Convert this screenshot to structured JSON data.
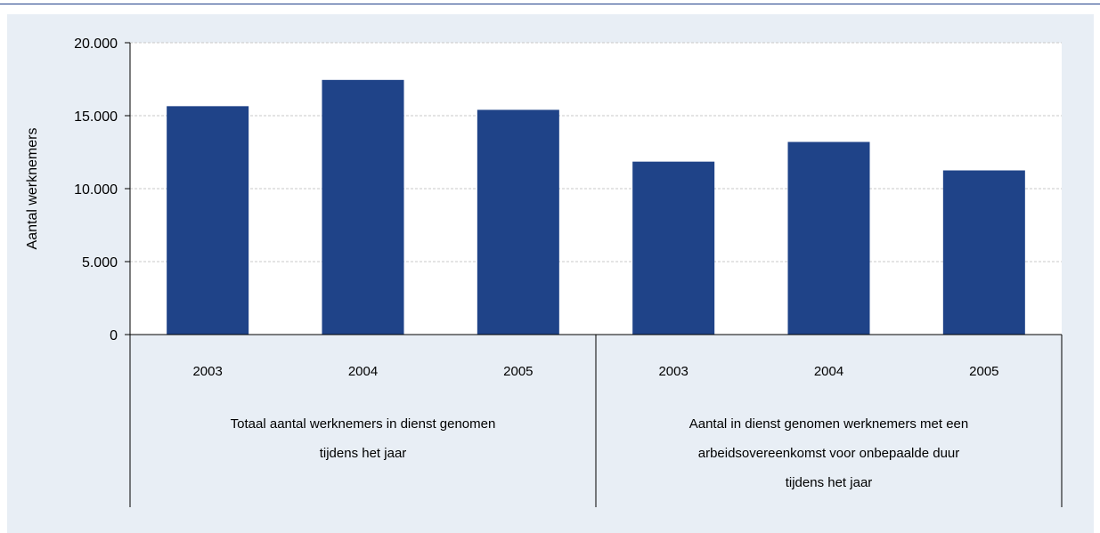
{
  "chart_data": {
    "type": "bar",
    "title": "",
    "xlabel": "",
    "ylabel": "Aantal werknemers",
    "ylim": [
      0,
      20000
    ],
    "yticks": [
      0,
      5000,
      10000,
      15000,
      20000
    ],
    "ytick_labels": [
      "0",
      "5.000",
      "10.000",
      "15.000",
      "20.000"
    ],
    "grid": true,
    "bar_color": "#1f4388",
    "groups": [
      {
        "label_lines": [
          "Totaal aantal werknemers in dienst genomen",
          "tijdens het jaar"
        ],
        "categories": [
          "2003",
          "2004",
          "2005"
        ],
        "values": [
          15650,
          17450,
          15400
        ]
      },
      {
        "label_lines": [
          "Aantal in dienst genomen werknemers met een",
          "arbeidsovereenkomst voor onbepaalde duur",
          "tijdens het jaar"
        ],
        "categories": [
          "2003",
          "2004",
          "2005"
        ],
        "values": [
          11850,
          13200,
          11250
        ]
      }
    ]
  }
}
